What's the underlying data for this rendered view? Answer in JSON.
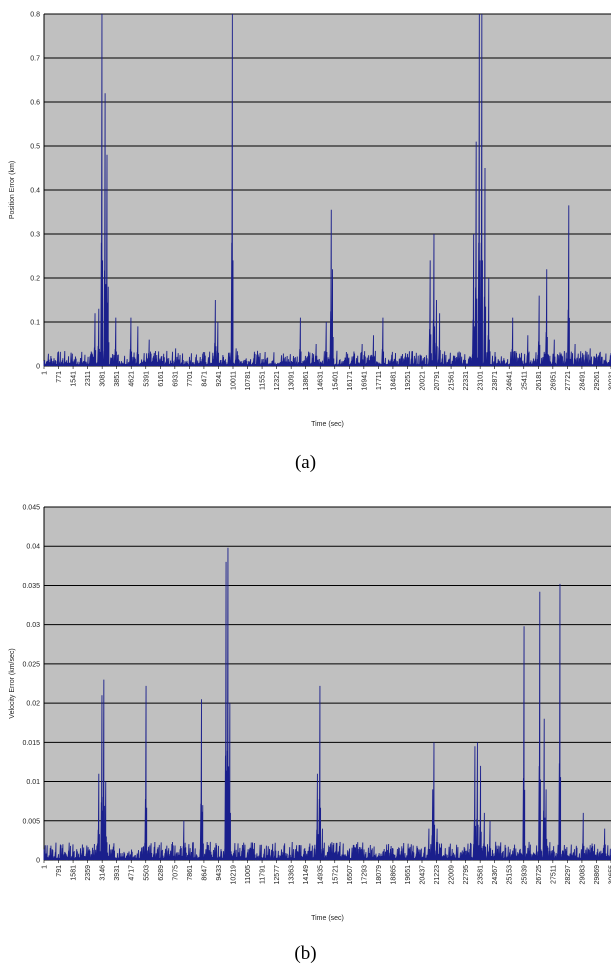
{
  "captions": {
    "a": "(a)",
    "b": "(b)"
  },
  "colors": {
    "plot_bg": "#c0c0c0",
    "series": "#1a1f8c",
    "grid": "#000000"
  },
  "chart_data": [
    {
      "type": "line",
      "xlabel": "Time (sec)",
      "ylabel": "Position Error (km)",
      "ylim": [
        0,
        0.8
      ],
      "yticks": [
        "0",
        "0.1",
        "0.2",
        "0.3",
        "0.4",
        "0.5",
        "0.6",
        "0.7",
        "0.8"
      ],
      "xlim": [
        1,
        30101
      ],
      "xtick_labels": [
        "1",
        "771",
        "1541",
        "2311",
        "3081",
        "3851",
        "4621",
        "5391",
        "6161",
        "6931",
        "7701",
        "8471",
        "9241",
        "10011",
        "10781",
        "11551",
        "12321",
        "13091",
        "13861",
        "14631",
        "15401",
        "16171",
        "16941",
        "17711",
        "18481",
        "19251",
        "20021",
        "20791",
        "21561",
        "22331",
        "23101",
        "23871",
        "24641",
        "25411",
        "26181",
        "26951",
        "27721",
        "28491",
        "29261",
        "30031"
      ],
      "grid": true,
      "baseline": 0.012,
      "peaks": [
        [
          2700,
          0.12
        ],
        [
          2900,
          0.13
        ],
        [
          3081,
          0.8
        ],
        [
          3250,
          0.62
        ],
        [
          3350,
          0.48
        ],
        [
          3420,
          0.18
        ],
        [
          3800,
          0.11
        ],
        [
          4621,
          0.11
        ],
        [
          5000,
          0.09
        ],
        [
          5600,
          0.06
        ],
        [
          7000,
          0.04
        ],
        [
          9100,
          0.15
        ],
        [
          9241,
          0.1
        ],
        [
          10011,
          0.8
        ],
        [
          10200,
          0.04
        ],
        [
          13600,
          0.11
        ],
        [
          14450,
          0.05
        ],
        [
          15000,
          0.1
        ],
        [
          15250,
          0.355
        ],
        [
          15330,
          0.22
        ],
        [
          16900,
          0.05
        ],
        [
          17500,
          0.07
        ],
        [
          18000,
          0.11
        ],
        [
          20500,
          0.24
        ],
        [
          20700,
          0.3
        ],
        [
          20850,
          0.15
        ],
        [
          21000,
          0.12
        ],
        [
          22800,
          0.3
        ],
        [
          22950,
          0.51
        ],
        [
          23100,
          0.8
        ],
        [
          23250,
          0.8
        ],
        [
          23400,
          0.45
        ],
        [
          23600,
          0.2
        ],
        [
          24900,
          0.11
        ],
        [
          25700,
          0.07
        ],
        [
          26300,
          0.16
        ],
        [
          26700,
          0.22
        ],
        [
          27100,
          0.06
        ],
        [
          27850,
          0.365
        ],
        [
          28200,
          0.05
        ],
        [
          29000,
          0.04
        ]
      ]
    },
    {
      "type": "line",
      "xlabel": "Time (sec)",
      "ylabel": "Velocity Error (km/sec)",
      "ylim": [
        0,
        0.045
      ],
      "yticks": [
        "0",
        "0.005",
        "0.01",
        "0.015",
        "0.02",
        "0.025",
        "0.03",
        "0.035",
        "0.04",
        "0.045"
      ],
      "xlim": [
        1,
        30655
      ],
      "xtick_labels": [
        "1",
        "791",
        "1581",
        "2359",
        "3146",
        "3931",
        "4717",
        "5503",
        "6289",
        "7075",
        "7861",
        "8647",
        "9433",
        "10219",
        "11005",
        "11791",
        "12577",
        "13363",
        "14149",
        "14935",
        "15721",
        "16507",
        "17293",
        "18079",
        "18865",
        "19651",
        "20437",
        "21223",
        "22009",
        "22795",
        "23581",
        "24367",
        "25153",
        "25939",
        "26725",
        "27511",
        "28297",
        "29083",
        "29869",
        "30655"
      ],
      "grid": true,
      "baseline": 0.0008,
      "peaks": [
        [
          2950,
          0.011
        ],
        [
          3150,
          0.021
        ],
        [
          3250,
          0.023
        ],
        [
          3350,
          0.01
        ],
        [
          5503,
          0.0222
        ],
        [
          7550,
          0.005
        ],
        [
          8500,
          0.0205
        ],
        [
          8600,
          0.007
        ],
        [
          9850,
          0.038
        ],
        [
          9950,
          0.0398
        ],
        [
          10050,
          0.02
        ],
        [
          14800,
          0.011
        ],
        [
          14935,
          0.0222
        ],
        [
          15050,
          0.004
        ],
        [
          20800,
          0.004
        ],
        [
          21000,
          0.009
        ],
        [
          21100,
          0.015
        ],
        [
          21250,
          0.004
        ],
        [
          23300,
          0.0145
        ],
        [
          23450,
          0.015
        ],
        [
          23600,
          0.012
        ],
        [
          23800,
          0.006
        ],
        [
          24100,
          0.005
        ],
        [
          25939,
          0.0298
        ],
        [
          26800,
          0.0342
        ],
        [
          27050,
          0.018
        ],
        [
          27150,
          0.009
        ],
        [
          27900,
          0.0352
        ],
        [
          29150,
          0.006
        ],
        [
          30300,
          0.004
        ]
      ]
    }
  ]
}
